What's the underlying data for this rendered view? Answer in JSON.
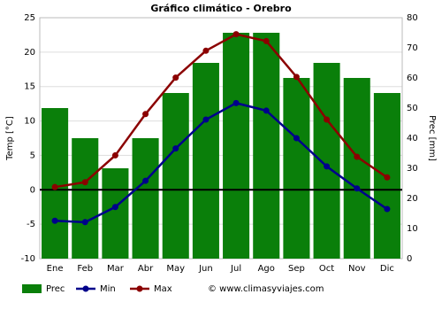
{
  "chart_data": {
    "type": "combo",
    "title": "Gráfico climático - Orebro",
    "categories": [
      "Ene",
      "Feb",
      "Mar",
      "Abr",
      "May",
      "Jun",
      "Jul",
      "Ago",
      "Sep",
      "Oct",
      "Nov",
      "Dic"
    ],
    "ylabel": "Temp [°C]",
    "y2label": "Prec [mm]",
    "ylim": [
      -10,
      25
    ],
    "yticks": [
      -10,
      -5,
      0,
      5,
      10,
      15,
      20,
      25
    ],
    "y2lim": [
      0,
      80
    ],
    "y2ticks": [
      0,
      10,
      20,
      30,
      40,
      50,
      60,
      70,
      80
    ],
    "grid": true,
    "series": [
      {
        "name": "Prec",
        "type": "bar",
        "axis": "y2",
        "color": "#0a7f0a",
        "values": [
          50,
          40,
          30,
          40,
          55,
          65,
          75,
          75,
          60,
          65,
          60,
          55
        ]
      },
      {
        "name": "Min",
        "type": "line",
        "color": "#00008b",
        "values": [
          -4.5,
          -4.7,
          -2.5,
          1.3,
          6.0,
          10.2,
          12.6,
          11.5,
          7.5,
          3.4,
          0.2,
          -2.8
        ]
      },
      {
        "name": "Max",
        "type": "line",
        "color": "#8b0000",
        "values": [
          0.4,
          1.1,
          5.0,
          11.0,
          16.3,
          20.2,
          22.6,
          21.6,
          16.4,
          10.2,
          4.8,
          1.8
        ]
      }
    ],
    "credit": "© www.climasyviajes.com"
  }
}
